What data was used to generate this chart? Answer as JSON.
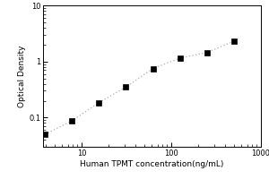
{
  "x_data": [
    3.9,
    7.8,
    15.6,
    31.25,
    62.5,
    125,
    250,
    500
  ],
  "y_data": [
    0.05,
    0.088,
    0.185,
    0.35,
    0.75,
    1.15,
    1.45,
    2.3
  ],
  "xlabel": "Human TPMT concentration(ng/mL)",
  "ylabel": "Optical Density",
  "xlim_log": [
    0.57,
    2.78
  ],
  "ylim_log": [
    -1.52,
    1.0
  ],
  "marker": "s",
  "marker_color": "black",
  "marker_size": 4,
  "line_color": "#bbbbbb",
  "background_color": "#ffffff",
  "label_fontsize": 6.5,
  "tick_fontsize": 6,
  "ytick_labels": [
    "0.1",
    "1",
    "10"
  ],
  "ytick_vals": [
    0.1,
    1,
    10
  ],
  "xtick_labels": [
    "10",
    "100",
    "1000"
  ],
  "xtick_vals": [
    10,
    100,
    1000
  ]
}
